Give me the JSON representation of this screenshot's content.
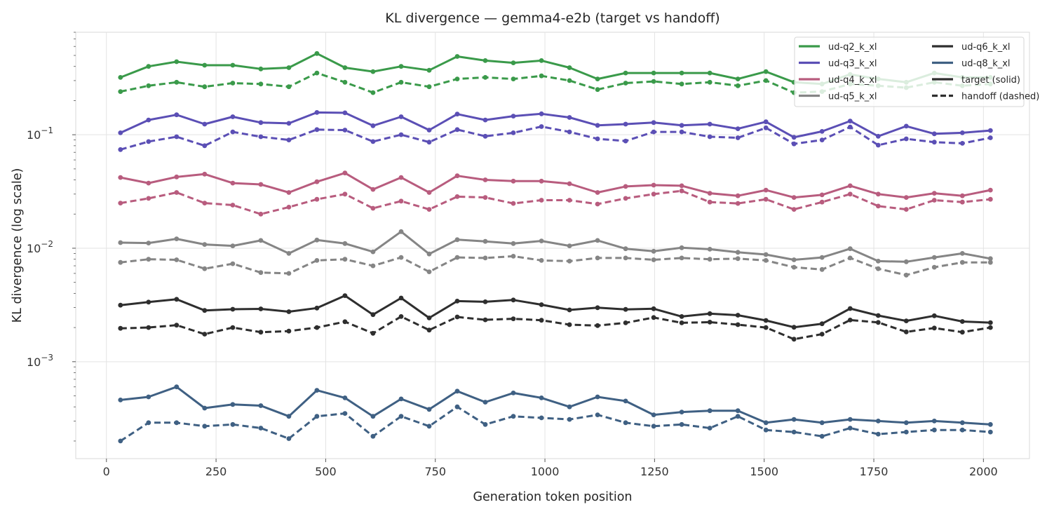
{
  "chart_data": {
    "type": "line",
    "title": "KL divergence — gemma4-e2b (target vs handoff)",
    "xlabel": "Generation token position",
    "ylabel": "KL divergence (log scale)",
    "xlim": [
      -70,
      2105
    ],
    "ylim": [
      0.00014,
      0.8
    ],
    "yscale": "log",
    "grid": true,
    "legend_position": "top-right",
    "x_ticks": [
      0,
      250,
      500,
      750,
      1000,
      1250,
      1500,
      1750,
      2000
    ],
    "y_ticks": [
      {
        "value": 0.001,
        "base": "10",
        "exp": "−3"
      },
      {
        "value": 0.01,
        "base": "10",
        "exp": "−2"
      },
      {
        "value": 0.1,
        "base": "10",
        "exp": "−1"
      }
    ],
    "x": [
      32,
      96,
      160,
      224,
      288,
      352,
      416,
      480,
      544,
      608,
      672,
      736,
      800,
      864,
      928,
      992,
      1056,
      1120,
      1184,
      1248,
      1312,
      1376,
      1440,
      1504,
      1568,
      1632,
      1696,
      1760,
      1824,
      1888,
      1952,
      2016
    ],
    "series": [
      {
        "name": "ud-q2_k_xl",
        "color": "#3a9a4a",
        "target": [
          0.32,
          0.4,
          0.44,
          0.41,
          0.41,
          0.38,
          0.39,
          0.52,
          0.39,
          0.36,
          0.4,
          0.37,
          0.49,
          0.45,
          0.43,
          0.45,
          0.39,
          0.31,
          0.35,
          0.35,
          0.35,
          0.35,
          0.31,
          0.36,
          0.29,
          0.28,
          0.34,
          0.31,
          0.29,
          0.35,
          0.32,
          0.32
        ],
        "handoff": [
          0.24,
          0.27,
          0.29,
          0.265,
          0.285,
          0.28,
          0.265,
          0.35,
          0.29,
          0.235,
          0.29,
          0.265,
          0.31,
          0.32,
          0.31,
          0.33,
          0.3,
          0.25,
          0.285,
          0.295,
          0.28,
          0.29,
          0.27,
          0.3,
          0.235,
          0.24,
          0.28,
          0.27,
          0.26,
          0.29,
          0.27,
          0.28
        ]
      },
      {
        "name": "ud-q3_k_xl",
        "color": "#5b4fb5",
        "target": [
          0.104,
          0.135,
          0.15,
          0.124,
          0.144,
          0.128,
          0.126,
          0.157,
          0.156,
          0.12,
          0.144,
          0.11,
          0.152,
          0.135,
          0.146,
          0.153,
          0.142,
          0.121,
          0.124,
          0.128,
          0.121,
          0.124,
          0.113,
          0.13,
          0.095,
          0.107,
          0.132,
          0.097,
          0.119,
          0.102,
          0.104,
          0.109
        ],
        "handoff": [
          0.074,
          0.087,
          0.096,
          0.08,
          0.106,
          0.096,
          0.09,
          0.111,
          0.11,
          0.087,
          0.1,
          0.086,
          0.111,
          0.097,
          0.104,
          0.118,
          0.106,
          0.092,
          0.088,
          0.106,
          0.106,
          0.096,
          0.094,
          0.115,
          0.083,
          0.09,
          0.117,
          0.081,
          0.092,
          0.086,
          0.084,
          0.094
        ]
      },
      {
        "name": "ud-q4_k_xl",
        "color": "#b85c7e",
        "target": [
          0.042,
          0.0375,
          0.0425,
          0.045,
          0.0375,
          0.0365,
          0.031,
          0.0385,
          0.046,
          0.033,
          0.042,
          0.031,
          0.0435,
          0.04,
          0.039,
          0.039,
          0.037,
          0.031,
          0.035,
          0.036,
          0.0355,
          0.0305,
          0.029,
          0.0325,
          0.028,
          0.0295,
          0.0355,
          0.03,
          0.028,
          0.0305,
          0.029,
          0.0325
        ],
        "handoff": [
          0.025,
          0.0275,
          0.031,
          0.025,
          0.024,
          0.02,
          0.023,
          0.027,
          0.03,
          0.0225,
          0.026,
          0.022,
          0.0285,
          0.028,
          0.0248,
          0.0265,
          0.0265,
          0.0245,
          0.0275,
          0.03,
          0.032,
          0.0255,
          0.0248,
          0.027,
          0.022,
          0.0255,
          0.03,
          0.0235,
          0.022,
          0.0265,
          0.0255,
          0.027
        ]
      },
      {
        "name": "ud-q5_k_xl",
        "color": "#858585",
        "target": [
          0.0112,
          0.0111,
          0.0121,
          0.0108,
          0.0105,
          0.0117,
          0.009,
          0.0118,
          0.011,
          0.0093,
          0.014,
          0.0089,
          0.0119,
          0.0115,
          0.011,
          0.0116,
          0.0105,
          0.0117,
          0.0099,
          0.0094,
          0.0101,
          0.0098,
          0.0092,
          0.0088,
          0.0079,
          0.0083,
          0.0099,
          0.0077,
          0.0076,
          0.0083,
          0.009,
          0.0081
        ],
        "handoff": [
          0.0075,
          0.008,
          0.0079,
          0.0066,
          0.0073,
          0.0061,
          0.006,
          0.0078,
          0.008,
          0.007,
          0.0083,
          0.0062,
          0.0083,
          0.0082,
          0.0085,
          0.0078,
          0.0077,
          0.0082,
          0.0082,
          0.0079,
          0.0082,
          0.008,
          0.0081,
          0.0078,
          0.0068,
          0.0065,
          0.0082,
          0.0066,
          0.0058,
          0.0068,
          0.0075,
          0.0075
        ]
      },
      {
        "name": "ud-q6_k_xl",
        "color": "#2e2e2e",
        "target": [
          0.00315,
          0.00335,
          0.00355,
          0.00283,
          0.0029,
          0.00292,
          0.00276,
          0.00297,
          0.00382,
          0.0026,
          0.00364,
          0.00243,
          0.00342,
          0.00337,
          0.0035,
          0.00318,
          0.00286,
          0.00299,
          0.00289,
          0.00293,
          0.0025,
          0.00265,
          0.00257,
          0.00231,
          0.00201,
          0.00216,
          0.00294,
          0.00255,
          0.00229,
          0.00254,
          0.00226,
          0.00221
        ],
        "handoff": [
          0.00197,
          0.002,
          0.0021,
          0.00175,
          0.002,
          0.00182,
          0.00186,
          0.002,
          0.00225,
          0.00178,
          0.0025,
          0.0019,
          0.00248,
          0.00234,
          0.00239,
          0.00232,
          0.00212,
          0.00208,
          0.0022,
          0.00245,
          0.0022,
          0.00223,
          0.00212,
          0.002,
          0.00158,
          0.00175,
          0.00233,
          0.00222,
          0.00183,
          0.00198,
          0.00182,
          0.002
        ]
      },
      {
        "name": "ud-q8_k_xl",
        "color": "#3f6083",
        "target": [
          0.00046,
          0.00049,
          0.0006,
          0.00039,
          0.00042,
          0.00041,
          0.00033,
          0.00056,
          0.00048,
          0.00033,
          0.00047,
          0.00038,
          0.00055,
          0.00044,
          0.00053,
          0.00048,
          0.0004,
          0.00049,
          0.00045,
          0.00034,
          0.00036,
          0.00037,
          0.00037,
          0.00029,
          0.00031,
          0.00029,
          0.00031,
          0.0003,
          0.00029,
          0.0003,
          0.00029,
          0.00028
        ],
        "handoff": [
          0.0002,
          0.00029,
          0.00029,
          0.00027,
          0.00028,
          0.00026,
          0.00021,
          0.00033,
          0.00035,
          0.00022,
          0.00033,
          0.00027,
          0.0004,
          0.00028,
          0.00033,
          0.00032,
          0.00031,
          0.00034,
          0.00029,
          0.00027,
          0.00028,
          0.00026,
          0.00033,
          0.00025,
          0.00024,
          0.00022,
          0.00026,
          0.00023,
          0.00024,
          0.00025,
          0.00025,
          0.00024
        ]
      }
    ],
    "legend": {
      "entries": [
        "ud-q2_k_xl",
        "ud-q3_k_xl",
        "ud-q4_k_xl",
        "ud-q5_k_xl",
        "ud-q6_k_xl",
        "ud-q8_k_xl",
        "target (solid)",
        "handoff (dashed)"
      ]
    }
  }
}
